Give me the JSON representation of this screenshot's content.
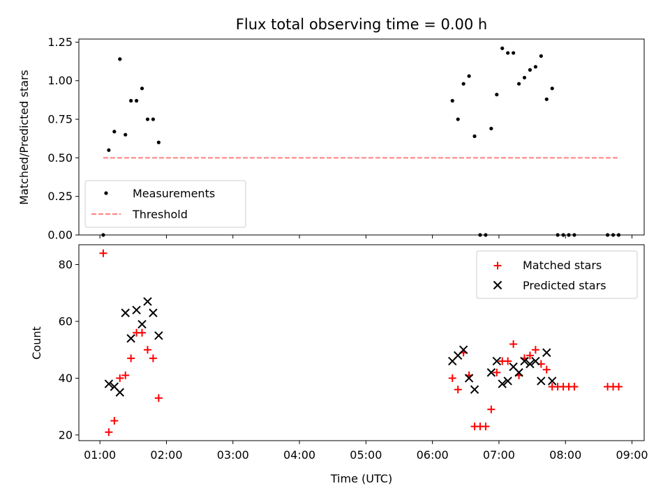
{
  "title": "Flux total observing time = 0.00 h",
  "chart_data": [
    {
      "type": "scatter",
      "panel": "top",
      "ylabel": "Matched/Predicted stars",
      "ylim": [
        0,
        1.27
      ],
      "yticks": [
        0.0,
        0.25,
        0.5,
        0.75,
        1.0,
        1.25
      ],
      "ytick_labels": [
        "0.00",
        "0.25",
        "0.50",
        "0.75",
        "1.00",
        "1.25"
      ],
      "legend_position": "lower-left",
      "series": [
        {
          "name": "Measurements",
          "color": "#000000",
          "marker": "dot",
          "points": [
            [
              "01:03",
              0.0
            ],
            [
              "01:08",
              0.55
            ],
            [
              "01:13",
              0.67
            ],
            [
              "01:18",
              1.14
            ],
            [
              "01:23",
              0.65
            ],
            [
              "01:28",
              0.87
            ],
            [
              "01:33",
              0.87
            ],
            [
              "01:38",
              0.95
            ],
            [
              "01:43",
              0.75
            ],
            [
              "01:48",
              0.75
            ],
            [
              "01:53",
              0.6
            ],
            [
              "06:18",
              0.87
            ],
            [
              "06:23",
              0.75
            ],
            [
              "06:28",
              0.98
            ],
            [
              "06:33",
              1.03
            ],
            [
              "06:38",
              0.64
            ],
            [
              "06:43",
              0.0
            ],
            [
              "06:48",
              0.0
            ],
            [
              "06:53",
              0.69
            ],
            [
              "06:58",
              0.91
            ],
            [
              "07:03",
              1.21
            ],
            [
              "07:08",
              1.18
            ],
            [
              "07:13",
              1.18
            ],
            [
              "07:18",
              0.98
            ],
            [
              "07:23",
              1.02
            ],
            [
              "07:28",
              1.07
            ],
            [
              "07:33",
              1.09
            ],
            [
              "07:38",
              1.16
            ],
            [
              "07:43",
              0.88
            ],
            [
              "07:48",
              0.95
            ],
            [
              "07:53",
              0.0
            ],
            [
              "07:58",
              0.0
            ],
            [
              "08:03",
              0.0
            ],
            [
              "08:08",
              0.0
            ],
            [
              "08:38",
              0.0
            ],
            [
              "08:43",
              0.0
            ],
            [
              "08:48",
              0.0
            ]
          ]
        },
        {
          "name": "Threshold",
          "color": "#ff8080",
          "line_style": "dashed",
          "points": [
            [
              "01:03",
              0.5
            ],
            [
              "08:48",
              0.5
            ]
          ]
        }
      ]
    },
    {
      "type": "scatter",
      "panel": "bottom",
      "xlabel": "Time (UTC)",
      "ylabel": "Count",
      "ylim": [
        18,
        87
      ],
      "yticks": [
        20,
        40,
        60,
        80
      ],
      "xlim": [
        "00:41",
        "09:11"
      ],
      "xticks": [
        "01:00",
        "02:00",
        "03:00",
        "04:00",
        "05:00",
        "06:00",
        "07:00",
        "08:00",
        "09:00"
      ],
      "legend_position": "upper-right",
      "series": [
        {
          "name": "Matched stars",
          "color": "#ff0000",
          "marker": "plus",
          "points": [
            [
              "01:03",
              84
            ],
            [
              "01:08",
              21
            ],
            [
              "01:13",
              25
            ],
            [
              "01:18",
              40
            ],
            [
              "01:23",
              41
            ],
            [
              "01:28",
              47
            ],
            [
              "01:33",
              56
            ],
            [
              "01:38",
              56
            ],
            [
              "01:43",
              50
            ],
            [
              "01:48",
              47
            ],
            [
              "01:53",
              33
            ],
            [
              "06:18",
              40
            ],
            [
              "06:23",
              36
            ],
            [
              "06:28",
              49
            ],
            [
              "06:33",
              41
            ],
            [
              "06:38",
              23
            ],
            [
              "06:43",
              23
            ],
            [
              "06:48",
              23
            ],
            [
              "06:53",
              29
            ],
            [
              "06:58",
              42
            ],
            [
              "07:03",
              46
            ],
            [
              "07:08",
              46
            ],
            [
              "07:13",
              52
            ],
            [
              "07:18",
              41
            ],
            [
              "07:23",
              47
            ],
            [
              "07:28",
              48
            ],
            [
              "07:33",
              50
            ],
            [
              "07:38",
              45
            ],
            [
              "07:43",
              43
            ],
            [
              "07:48",
              37
            ],
            [
              "07:53",
              37
            ],
            [
              "07:58",
              37
            ],
            [
              "08:03",
              37
            ],
            [
              "08:08",
              37
            ],
            [
              "08:38",
              37
            ],
            [
              "08:43",
              37
            ],
            [
              "08:48",
              37
            ]
          ]
        },
        {
          "name": "Predicted stars",
          "color": "#000000",
          "marker": "x",
          "points": [
            [
              "01:08",
              38
            ],
            [
              "01:13",
              37
            ],
            [
              "01:18",
              35
            ],
            [
              "01:23",
              63
            ],
            [
              "01:28",
              54
            ],
            [
              "01:33",
              64
            ],
            [
              "01:38",
              59
            ],
            [
              "01:43",
              67
            ],
            [
              "01:48",
              63
            ],
            [
              "01:53",
              55
            ],
            [
              "06:18",
              46
            ],
            [
              "06:23",
              48
            ],
            [
              "06:28",
              50
            ],
            [
              "06:33",
              40
            ],
            [
              "06:38",
              36
            ],
            [
              "06:53",
              42
            ],
            [
              "06:58",
              46
            ],
            [
              "07:03",
              38
            ],
            [
              "07:08",
              39
            ],
            [
              "07:13",
              44
            ],
            [
              "07:18",
              42
            ],
            [
              "07:23",
              46
            ],
            [
              "07:28",
              45
            ],
            [
              "07:33",
              46
            ],
            [
              "07:38",
              39
            ],
            [
              "07:43",
              49
            ],
            [
              "07:48",
              39
            ]
          ]
        }
      ]
    }
  ]
}
